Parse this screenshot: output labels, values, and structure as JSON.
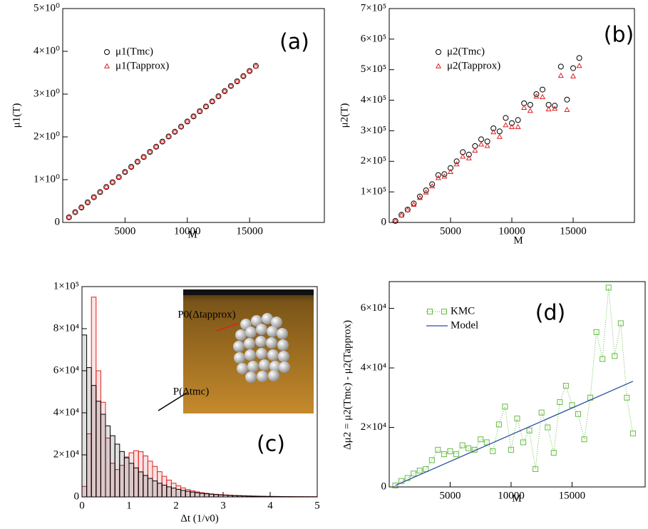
{
  "chart_data": [
    {
      "type": "scatter",
      "xlabel": "M",
      "ylabel": "μ1(T)",
      "annotations": [
        "(a)"
      ],
      "legend": "upper left",
      "xlim": [
        0,
        21000
      ],
      "xticks": [
        5000,
        10000,
        15000
      ],
      "ylim": [
        0,
        5
      ],
      "yticks": [
        0,
        {
          "value": 1,
          "label": "1×10⁰"
        },
        {
          "value": 2,
          "label": "2×10⁰"
        },
        {
          "value": 3,
          "label": "3×10⁰"
        },
        {
          "value": 4,
          "label": "4×10⁰"
        },
        {
          "value": 5,
          "label": "5×10⁰"
        }
      ],
      "series": [
        {
          "name": "μ1(Tmc)",
          "color": "#000000",
          "marker": "circle",
          "x": [
            500,
            1000,
            1500,
            2000,
            2500,
            3000,
            3500,
            4000,
            4500,
            5000,
            5500,
            6000,
            6500,
            7000,
            7500,
            8000,
            8500,
            9000,
            9500,
            10000,
            10500,
            11000,
            11500,
            12000,
            12500,
            13000,
            13500,
            14000,
            14500,
            15000,
            15500
          ],
          "values": [
            0.12,
            0.24,
            0.35,
            0.47,
            0.59,
            0.71,
            0.83,
            0.94,
            1.06,
            1.18,
            1.3,
            1.42,
            1.53,
            1.65,
            1.77,
            1.89,
            2.01,
            2.12,
            2.24,
            2.36,
            2.48,
            2.6,
            2.71,
            2.83,
            2.95,
            3.07,
            3.19,
            3.3,
            3.42,
            3.54,
            3.66
          ]
        },
        {
          "name": "μ1(Tapprox)",
          "color": "#e02020",
          "marker": "triangle",
          "x": [
            500,
            1000,
            1500,
            2000,
            2500,
            3000,
            3500,
            4000,
            4500,
            5000,
            5500,
            6000,
            6500,
            7000,
            7500,
            8000,
            8500,
            9000,
            9500,
            10000,
            10500,
            11000,
            11500,
            12000,
            12500,
            13000,
            13500,
            14000,
            14500,
            15000,
            15500
          ],
          "values": [
            0.12,
            0.24,
            0.35,
            0.47,
            0.59,
            0.71,
            0.83,
            0.94,
            1.06,
            1.18,
            1.3,
            1.42,
            1.53,
            1.65,
            1.77,
            1.89,
            2.01,
            2.12,
            2.24,
            2.36,
            2.48,
            2.6,
            2.71,
            2.83,
            2.95,
            3.07,
            3.19,
            3.3,
            3.42,
            3.54,
            3.65
          ]
        }
      ]
    },
    {
      "type": "scatter",
      "xlabel": "M",
      "ylabel": "μ2(T)",
      "annotations": [
        "(b)"
      ],
      "legend": "upper left",
      "xlim": [
        0,
        20000
      ],
      "xticks": [
        5000,
        10000,
        15000
      ],
      "ylim": [
        0,
        700000
      ],
      "yticks": [
        0,
        {
          "value": 100000,
          "label": "1×10⁵"
        },
        {
          "value": 200000,
          "label": "2×10⁵"
        },
        {
          "value": 300000,
          "label": "3×10⁵"
        },
        {
          "value": 400000,
          "label": "4×10⁵"
        },
        {
          "value": 500000,
          "label": "5×10⁵"
        },
        {
          "value": 600000,
          "label": "6×10⁵"
        },
        {
          "value": 700000,
          "label": "7×10⁵"
        }
      ],
      "series": [
        {
          "name": "μ2(Tmc)",
          "color": "#000000",
          "marker": "circle",
          "x": [
            500,
            1000,
            1500,
            2000,
            2500,
            3000,
            3500,
            4000,
            4500,
            5000,
            5500,
            6000,
            6500,
            7000,
            7500,
            8000,
            8500,
            9000,
            9500,
            10000,
            10500,
            11000,
            11500,
            12000,
            12500,
            13000,
            13500,
            14000,
            14500,
            15000,
            15500
          ],
          "values": [
            5000,
            25000,
            42000,
            62000,
            85000,
            105000,
            125000,
            155000,
            158000,
            178000,
            200000,
            230000,
            222000,
            250000,
            272000,
            265000,
            308000,
            298000,
            342000,
            325000,
            335000,
            390000,
            385000,
            420000,
            435000,
            385000,
            382000,
            510000,
            402000,
            505000,
            538000
          ]
        },
        {
          "name": "μ2(Tapprox)",
          "color": "#e02020",
          "marker": "triangle",
          "x": [
            500,
            1000,
            1500,
            2000,
            2500,
            3000,
            3500,
            4000,
            4500,
            5000,
            5500,
            6000,
            6500,
            7000,
            7500,
            8000,
            8500,
            9000,
            9500,
            10000,
            10500,
            11000,
            11500,
            12000,
            12500,
            13000,
            13500,
            14000,
            14500,
            15000,
            15500
          ],
          "values": [
            4000,
            23000,
            40000,
            58000,
            80000,
            98000,
            118000,
            145000,
            150000,
            165000,
            190000,
            215000,
            210000,
            235000,
            255000,
            250000,
            295000,
            280000,
            318000,
            312000,
            312000,
            375000,
            365000,
            412000,
            410000,
            370000,
            372000,
            480000,
            368000,
            478000,
            512000
          ]
        }
      ]
    },
    {
      "type": "histogram",
      "xlabel": "Δt (1/ν0)",
      "annotations": [
        "P0(Δtapprox)",
        "P(Δtmc)",
        "(c)"
      ],
      "xlim": [
        0,
        5
      ],
      "xticks": [
        0,
        1,
        2,
        3,
        4,
        5
      ],
      "ylim": [
        0,
        100000
      ],
      "yticks": [
        0,
        {
          "value": 20000,
          "label": "2×10⁴"
        },
        {
          "value": 40000,
          "label": "4×10⁴"
        },
        {
          "value": 60000,
          "label": "6×10⁴"
        },
        {
          "value": 80000,
          "label": "8×10⁴"
        },
        {
          "value": 100000,
          "label": "1×10⁵"
        }
      ],
      "bins": [
        0,
        0.1,
        0.2,
        0.3,
        0.4,
        0.5,
        0.6,
        0.7,
        0.8,
        0.9,
        1,
        1.1,
        1.2,
        1.3,
        1.4,
        1.5,
        1.6,
        1.7,
        1.8,
        1.9,
        2,
        2.1,
        2.2,
        2.3,
        2.4,
        2.5,
        2.6,
        2.7,
        2.8,
        2.9,
        3,
        3.1,
        3.2,
        3.3,
        3.4,
        3.5,
        3.6,
        3.7,
        3.8,
        3.9,
        4,
        4.1,
        4.2,
        4.3,
        4.4,
        4.5,
        4.6,
        4.7,
        4.8,
        4.9,
        5
      ],
      "series": [
        {
          "color": "#e02020",
          "values": [
            5000,
            30000,
            95000,
            60000,
            45000,
            28000,
            16000,
            13000,
            15000,
            19000,
            21000,
            22000,
            21500,
            19500,
            17000,
            14500,
            12000,
            9800,
            8000,
            6500,
            5300,
            4300,
            3500,
            2900,
            2400,
            2000,
            1700,
            1450,
            1250,
            1100,
            950,
            830,
            720,
            630,
            550,
            480,
            420,
            370,
            320,
            280,
            250,
            220,
            190,
            170,
            150,
            130,
            115,
            100,
            90,
            80
          ]
        },
        {
          "color": "#000000",
          "values": [
            77000,
            61500,
            53000,
            45500,
            39300,
            33800,
            29100,
            25100,
            21600,
            18600,
            16000,
            13800,
            11900,
            10200,
            8800,
            7600,
            6500,
            5600,
            4800,
            4200,
            3600,
            3100,
            2700,
            2300,
            2000,
            1700,
            1500,
            1300,
            1100,
            950,
            820,
            700,
            610,
            520,
            450,
            390,
            330,
            290,
            250,
            210,
            180,
            160,
            140,
            120,
            100,
            90,
            80,
            70,
            60,
            50
          ]
        }
      ]
    },
    {
      "type": "line",
      "xlabel": "M",
      "ylabel": "Δμ2 = μ2(Tmc) - μ2(Tapprox)",
      "annotations": [
        "(d)"
      ],
      "legend": "upper left",
      "xlim": [
        0,
        21000
      ],
      "xticks": [
        5000,
        10000,
        15000
      ],
      "ylim": [
        0,
        69000
      ],
      "yticks": [
        0,
        {
          "value": 20000,
          "label": "2×10⁴"
        },
        {
          "value": 40000,
          "label": "4×10⁴"
        },
        {
          "value": 60000,
          "label": "6×10⁴"
        }
      ],
      "series": [
        {
          "name": "KMC",
          "color": "#66bb44",
          "marker": "square",
          "linestyle": "dotted",
          "x": [
            500,
            1000,
            1500,
            2000,
            2500,
            3000,
            3500,
            4000,
            4500,
            5000,
            5500,
            6000,
            6500,
            7000,
            7500,
            8000,
            8500,
            9000,
            9500,
            10000,
            10500,
            11000,
            11500,
            12000,
            12500,
            13000,
            13500,
            14000,
            14500,
            15000,
            15500,
            16000,
            16500,
            17000,
            17500,
            18000,
            18500,
            19000,
            19500,
            20000
          ],
          "values": [
            500,
            2000,
            3000,
            4500,
            5500,
            6000,
            9000,
            12500,
            11000,
            12000,
            11000,
            14000,
            13000,
            12500,
            16000,
            15000,
            12000,
            21000,
            27000,
            12500,
            23000,
            15000,
            19000,
            6000,
            25000,
            20000,
            11500,
            28500,
            34000,
            27500,
            24500,
            16000,
            30000,
            52000,
            43000,
            67000,
            44000,
            55000,
            30000,
            18000
          ]
        },
        {
          "name": "Model",
          "color": "#2a4fa0",
          "linestyle": "solid",
          "x": [
            500,
            20000
          ],
          "values": [
            500,
            35500
          ]
        }
      ]
    }
  ]
}
